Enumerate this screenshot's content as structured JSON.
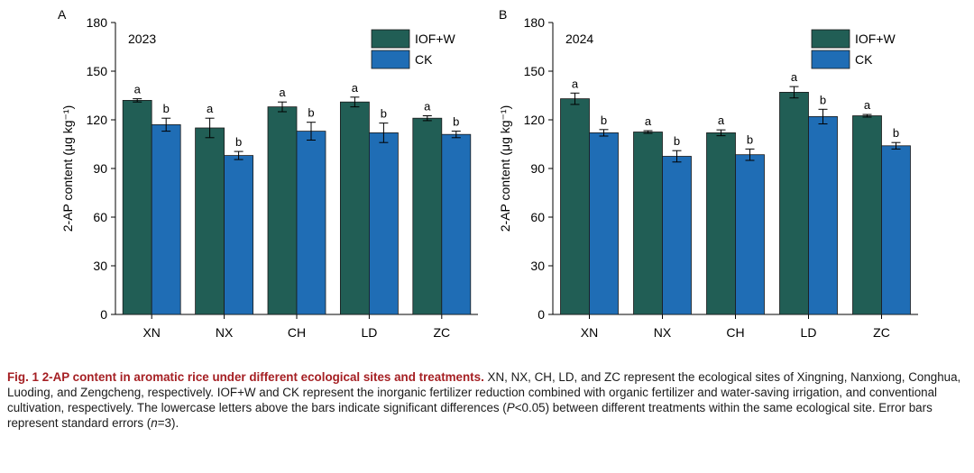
{
  "colors": {
    "iofw": "#215e55",
    "ck": "#1f6db5"
  },
  "chart_data": [
    {
      "type": "bar",
      "panel": "A",
      "year_label": "2023",
      "ylabel": "2-AP content (μg kg⁻¹)",
      "ylim": [
        0,
        180
      ],
      "yticks": [
        "0",
        "30",
        "60",
        "90",
        "120",
        "150",
        "180"
      ],
      "yticks_values": [
        0,
        30,
        60,
        90,
        120,
        150,
        180
      ],
      "categories": [
        "XN",
        "NX",
        "CH",
        "LD",
        "ZC"
      ],
      "legend_position": "top-right",
      "series": [
        {
          "name": "IOF+W",
          "values": [
            132,
            115,
            128,
            131,
            121
          ],
          "errors": [
            1,
            6,
            3,
            3,
            1.5
          ],
          "letters": [
            "a",
            "a",
            "a",
            "a",
            "a"
          ]
        },
        {
          "name": "CK",
          "values": [
            117,
            98,
            113,
            112,
            111
          ],
          "errors": [
            4,
            2.5,
            5.5,
            6,
            2
          ],
          "letters": [
            "b",
            "b",
            "b",
            "b",
            "b"
          ]
        }
      ]
    },
    {
      "type": "bar",
      "panel": "B",
      "year_label": "2024",
      "ylabel": "2-AP content (μg kg⁻¹)",
      "ylim": [
        0,
        180
      ],
      "yticks": [
        "0",
        "30",
        "60",
        "90",
        "120",
        "150",
        "180"
      ],
      "yticks_values": [
        0,
        30,
        60,
        90,
        120,
        150,
        180
      ],
      "categories": [
        "XN",
        "NX",
        "CH",
        "LD",
        "ZC"
      ],
      "legend_position": "top-right",
      "series": [
        {
          "name": "IOF+W",
          "values": [
            133,
            112.5,
            112,
            137,
            122.5
          ],
          "errors": [
            3.5,
            0.8,
            1.8,
            3.5,
            0.8
          ],
          "letters": [
            "a",
            "a",
            "a",
            "a",
            "a"
          ]
        },
        {
          "name": "CK",
          "values": [
            112,
            97.5,
            98.5,
            122,
            104
          ],
          "errors": [
            2,
            3.5,
            3.5,
            4.5,
            2
          ],
          "letters": [
            "b",
            "b",
            "b",
            "b",
            "b"
          ]
        }
      ]
    }
  ],
  "caption": {
    "title": "Fig. 1  2-AP content in aromatic rice under different ecological sites and treatments.",
    "body_1": " XN, NX, CH, LD, and ZC represent the ecological sites of Xingning, Nanxiong, Conghua, Luoding, and Zengcheng, respectively.  IOF+W and CK represent the inorganic fertilizer reduction combined with organic fertilizer and water-saving irrigation, and conventional cultivation, respectively.  The lowercase letters above the bars indicate significant differences (",
    "p_symbol": "P",
    "body_2": "<0.05) between different treatments within the same ecological site.  Error bars represent standard errors (",
    "n_symbol": "n",
    "body_3": "=3)."
  }
}
